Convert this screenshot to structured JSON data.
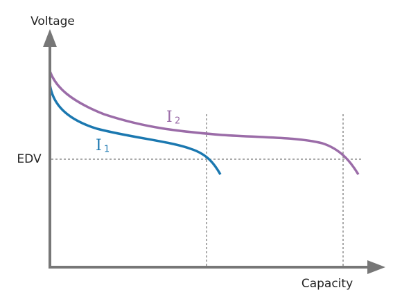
{
  "y_axis": {
    "label": "Voltage"
  },
  "x_axis": {
    "label": "Capacity"
  },
  "threshold": {
    "label": "EDV"
  },
  "curves": [
    {
      "symbol": "I",
      "subscript": "1"
    },
    {
      "symbol": "I",
      "subscript": "2"
    }
  ]
}
